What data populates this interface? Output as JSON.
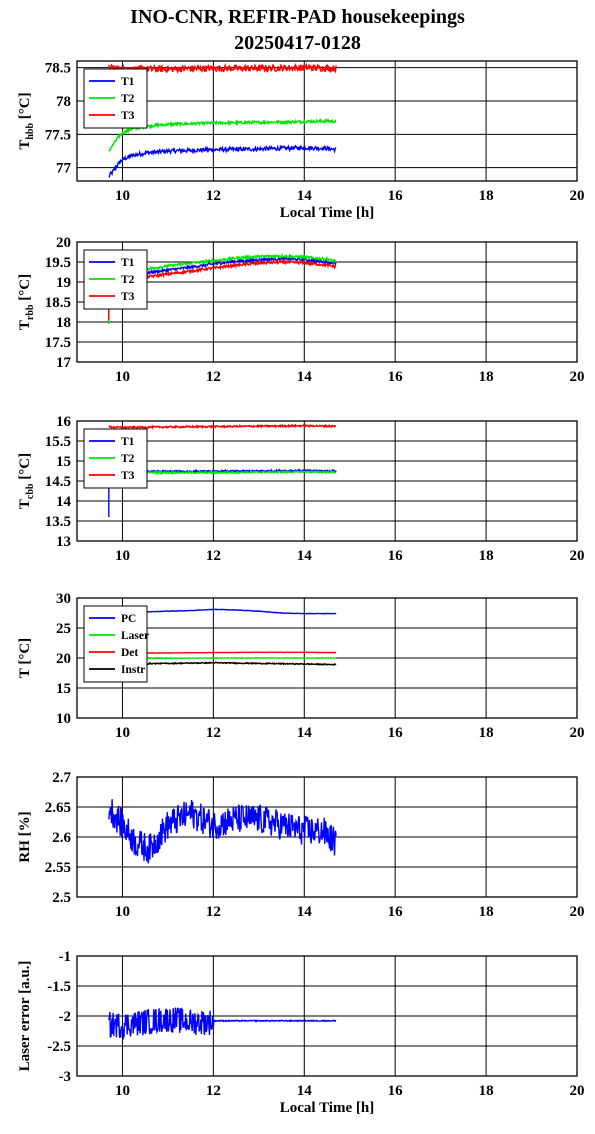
{
  "title_line1": "INO-CNR, REFIR-PAD housekeepings",
  "title_line2": "20250417-0128",
  "colors": {
    "blue": "#0000ff",
    "green": "#00e600",
    "red": "#ff0000",
    "black": "#000000"
  },
  "chart_data": [
    {
      "type": "line",
      "ylabel_main": "T",
      "ylabel_sub": "hbb",
      "ylabel_unit": " [°C]",
      "xlabel": "Local Time [h]",
      "xlim": [
        9,
        20
      ],
      "ylim": [
        76.8,
        78.6
      ],
      "xticks": [
        10,
        12,
        14,
        16,
        18,
        20
      ],
      "yticks": [
        77,
        77.5,
        78,
        78.5
      ],
      "ytick_labels": [
        "77",
        "77.5",
        "78",
        "78.5"
      ],
      "grid": true,
      "legend": "top-left",
      "series": [
        {
          "name": "T1",
          "color": "blue",
          "x": [
            9.7,
            9.8,
            9.9,
            10.0,
            10.2,
            10.5,
            11,
            12,
            13,
            14,
            14.5,
            14.7
          ],
          "y": [
            76.87,
            76.95,
            77.05,
            77.12,
            77.18,
            77.22,
            77.25,
            77.27,
            77.28,
            77.3,
            77.29,
            77.27
          ],
          "noise": 0.03
        },
        {
          "name": "T2",
          "color": "green",
          "x": [
            9.7,
            9.8,
            9.9,
            10.0,
            10.2,
            10.5,
            11,
            12,
            13,
            14,
            14.5,
            14.7
          ],
          "y": [
            77.25,
            77.35,
            77.45,
            77.52,
            77.58,
            77.62,
            77.65,
            77.67,
            77.68,
            77.69,
            77.7,
            77.69
          ],
          "noise": 0.02
        },
        {
          "name": "T3",
          "color": "red",
          "x": [
            9.7,
            10.0,
            11,
            12,
            13,
            14,
            14.7
          ],
          "y": [
            78.5,
            78.48,
            78.48,
            78.49,
            78.49,
            78.5,
            78.49
          ],
          "noise": 0.05
        }
      ]
    },
    {
      "type": "line",
      "ylabel_main": "T",
      "ylabel_sub": "rbb",
      "ylabel_unit": " [°C]",
      "xlabel": "",
      "xlim": [
        9,
        20
      ],
      "ylim": [
        17,
        20
      ],
      "xticks": [
        10,
        12,
        14,
        16,
        18,
        20
      ],
      "yticks": [
        17,
        17.5,
        18,
        18.5,
        19,
        19.5,
        20
      ],
      "ytick_labels": [
        "17",
        "17.5",
        "18",
        "18.5",
        "19",
        "19.5",
        "20"
      ],
      "grid": true,
      "legend": "top-left",
      "series": [
        {
          "name": "T1",
          "color": "blue",
          "x": [
            9.7,
            10.0,
            10.5,
            11,
            11.5,
            12,
            12.5,
            13,
            13.5,
            14,
            14.5,
            14.7
          ],
          "y": [
            19.1,
            19.15,
            19.22,
            19.3,
            19.37,
            19.45,
            19.52,
            19.56,
            19.58,
            19.56,
            19.5,
            19.46
          ],
          "noise": 0.03,
          "spike_to": 18.0
        },
        {
          "name": "T2",
          "color": "green",
          "x": [
            9.7,
            10.0,
            10.5,
            11,
            11.5,
            12,
            12.5,
            13,
            13.5,
            14,
            14.5,
            14.7
          ],
          "y": [
            19.2,
            19.25,
            19.32,
            19.4,
            19.47,
            19.53,
            19.6,
            19.64,
            19.65,
            19.62,
            19.57,
            19.52
          ],
          "noise": 0.03,
          "spike_to": 17.95
        },
        {
          "name": "T3",
          "color": "red",
          "x": [
            9.7,
            10.0,
            10.5,
            11,
            11.5,
            12,
            12.5,
            13,
            13.5,
            14,
            14.5,
            14.7
          ],
          "y": [
            19.0,
            19.05,
            19.12,
            19.2,
            19.27,
            19.35,
            19.42,
            19.47,
            19.5,
            19.48,
            19.42,
            19.38
          ],
          "noise": 0.03,
          "spike_to": 18.05
        }
      ]
    },
    {
      "type": "line",
      "ylabel_main": "T",
      "ylabel_sub": "cbb",
      "ylabel_unit": " [°C]",
      "xlabel": "",
      "xlim": [
        9,
        20
      ],
      "ylim": [
        13,
        16
      ],
      "xticks": [
        10,
        12,
        14,
        16,
        18,
        20
      ],
      "yticks": [
        13,
        13.5,
        14,
        14.5,
        15,
        15.5,
        16
      ],
      "ytick_labels": [
        "13",
        "13.5",
        "14",
        "14.5",
        "15",
        "15.5",
        "16"
      ],
      "grid": true,
      "legend": "top-left",
      "series": [
        {
          "name": "T1",
          "color": "blue",
          "x": [
            9.7,
            10.0,
            11,
            12,
            13,
            14,
            14.7
          ],
          "y": [
            14.75,
            14.75,
            14.74,
            14.74,
            14.75,
            14.76,
            14.75
          ],
          "noise": 0.02,
          "spike_to": 13.6
        },
        {
          "name": "T2",
          "color": "green",
          "x": [
            9.7,
            10.0,
            11,
            12,
            13,
            14,
            14.7
          ],
          "y": [
            14.72,
            14.72,
            14.71,
            14.71,
            14.72,
            14.73,
            14.72
          ],
          "noise": 0.02,
          "spike_to": 14.5
        },
        {
          "name": "T3",
          "color": "red",
          "x": [
            9.7,
            10.0,
            11,
            12,
            13,
            14,
            14.7
          ],
          "y": [
            15.85,
            15.84,
            15.85,
            15.86,
            15.87,
            15.88,
            15.87
          ],
          "noise": 0.02
        }
      ]
    },
    {
      "type": "line",
      "ylabel_main": "T [°C]",
      "ylabel_sub": "",
      "ylabel_unit": "",
      "xlabel": "",
      "xlim": [
        9,
        20
      ],
      "ylim": [
        10,
        30
      ],
      "xticks": [
        10,
        12,
        14,
        16,
        18,
        20
      ],
      "yticks": [
        10,
        15,
        20,
        25,
        30
      ],
      "ytick_labels": [
        "10",
        "15",
        "20",
        "25",
        "30"
      ],
      "grid": true,
      "legend": "top-left",
      "series": [
        {
          "name": "PC",
          "color": "blue",
          "x": [
            9.7,
            10.5,
            11.5,
            12,
            12.5,
            13,
            13.5,
            14,
            14.7
          ],
          "y": [
            27.6,
            27.7,
            27.9,
            28.1,
            28.0,
            27.8,
            27.5,
            27.4,
            27.4
          ],
          "noise": 0.03
        },
        {
          "name": "Laser",
          "color": "green",
          "x": [
            9.7,
            11,
            12,
            13,
            14,
            14.7
          ],
          "y": [
            19.9,
            19.95,
            20.0,
            20.0,
            20.0,
            20.0
          ],
          "noise": 0.02
        },
        {
          "name": "Det",
          "color": "red",
          "x": [
            9.7,
            11,
            12,
            13,
            14,
            14.7
          ],
          "y": [
            20.8,
            20.85,
            20.9,
            20.95,
            20.95,
            20.9
          ],
          "noise": 0.02
        },
        {
          "name": "Instr",
          "color": "black",
          "x": [
            9.7,
            11,
            12,
            13,
            14,
            14.7
          ],
          "y": [
            19.0,
            19.1,
            19.2,
            19.1,
            19.0,
            18.9
          ],
          "noise": 0.08
        }
      ]
    },
    {
      "type": "line",
      "ylabel_main": "RH [%]",
      "ylabel_sub": "",
      "ylabel_unit": "",
      "xlabel": "",
      "xlim": [
        9,
        20
      ],
      "ylim": [
        2.5,
        2.7
      ],
      "xticks": [
        10,
        12,
        14,
        16,
        18,
        20
      ],
      "yticks": [
        2.5,
        2.55,
        2.6,
        2.65,
        2.7
      ],
      "ytick_labels": [
        "2.5",
        "2.55",
        "2.6",
        "2.65",
        "2.7"
      ],
      "grid": true,
      "legend": "none",
      "series": [
        {
          "name": "",
          "color": "blue",
          "x": [
            9.7,
            10.0,
            10.3,
            10.6,
            11.0,
            11.5,
            12,
            12.5,
            13,
            13.5,
            14,
            14.4,
            14.7
          ],
          "y": [
            2.65,
            2.62,
            2.59,
            2.58,
            2.62,
            2.64,
            2.62,
            2.63,
            2.63,
            2.62,
            2.61,
            2.61,
            2.59
          ],
          "noise": 0.025
        }
      ]
    },
    {
      "type": "line",
      "ylabel_main": "Laser error [a.u.]",
      "ylabel_sub": "",
      "ylabel_unit": "",
      "xlabel": "Local Time [h]",
      "xlim": [
        9,
        20
      ],
      "ylim": [
        -3,
        -1
      ],
      "xticks": [
        10,
        12,
        14,
        16,
        18,
        20
      ],
      "yticks": [
        -3,
        -2.5,
        -2,
        -1.5,
        -1
      ],
      "ytick_labels": [
        "-3",
        "-2.5",
        "-2",
        "-1.5",
        "-1"
      ],
      "grid": true,
      "legend": "none",
      "series": [
        {
          "name": "",
          "color": "blue",
          "x": [
            9.7,
            10.0,
            10.5,
            11,
            11.5,
            12.0,
            12.01,
            13,
            14,
            14.7
          ],
          "y": [
            -2.15,
            -2.15,
            -2.1,
            -2.05,
            -2.1,
            -2.1,
            -2.08,
            -2.08,
            -2.08,
            -2.08
          ],
          "noise_before": 12.0,
          "noise": 0.22
        }
      ]
    }
  ]
}
